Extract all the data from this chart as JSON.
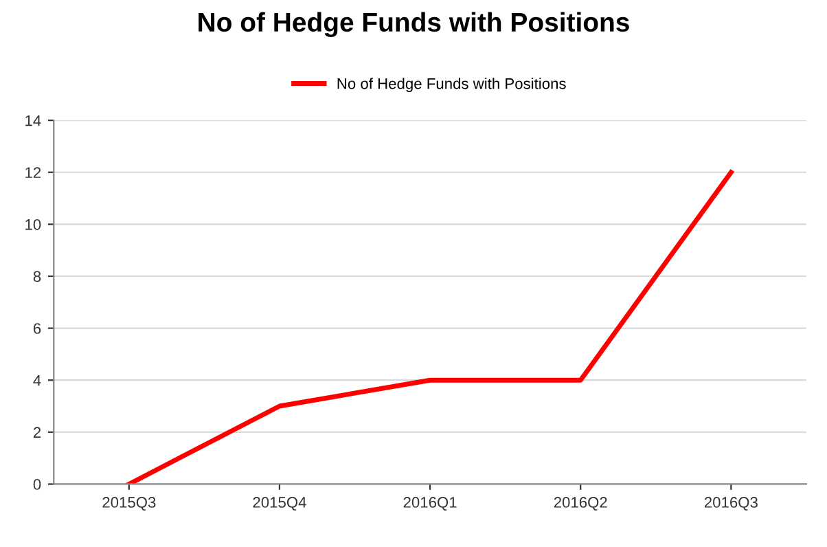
{
  "chart_data": {
    "type": "line",
    "title": "No of Hedge Funds with Positions",
    "categories": [
      "2015Q3",
      "2015Q4",
      "2016Q1",
      "2016Q2",
      "2016Q3"
    ],
    "series": [
      {
        "name": "No of Hedge Funds with Positions",
        "color": "#ff0000",
        "values": [
          0,
          3,
          4,
          4,
          12
        ]
      }
    ],
    "ylim": [
      0,
      14
    ],
    "yticks": [
      0,
      2,
      4,
      6,
      8,
      10,
      12,
      14
    ],
    "grid": "y",
    "legend": "top",
    "marker": "none",
    "line_style": "solid"
  }
}
